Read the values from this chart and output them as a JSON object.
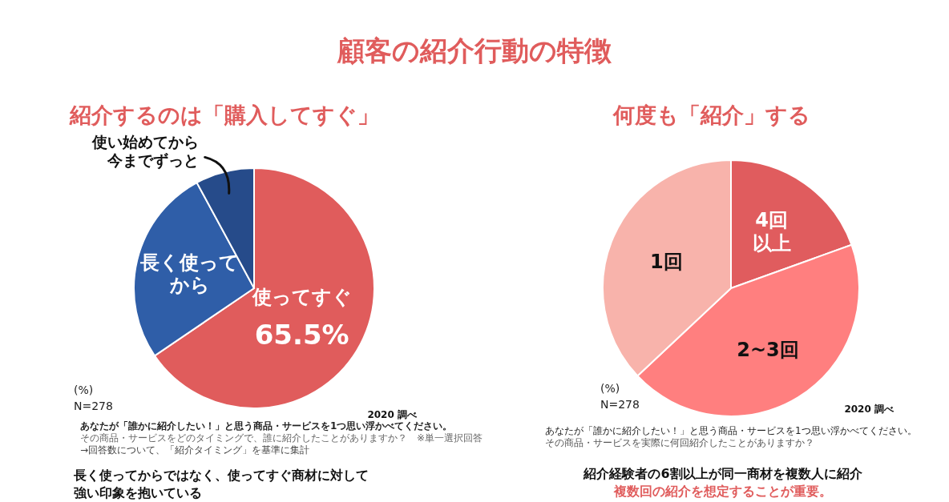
{
  "chart_data": [
    {
      "type": "pie",
      "title": "紹介するのは「購入してすぐ」",
      "categories": [
        "使ってすぐ",
        "長く使ってから",
        "使い始めてから今までずっと"
      ],
      "values": [
        65.5,
        26.6,
        7.9
      ],
      "value_labels": [
        "65.5%",
        null,
        null
      ],
      "colors": [
        "#e05c5c",
        "#2f5ea8",
        "#264b8a"
      ],
      "annotations": [
        "顧客の紹介行動の特徴",
        "(%)",
        "N=278",
        "2020 調べ",
        "あなたが「誰かに紹介したい！」と思う商品・サービスを1つ思い浮かべてください。",
        "その商品・サービスをどのタイミングで、誰に紹介したことがありますか？　※単一選択回答",
        "→回答数について、「紹介タイミング」を基準に集計",
        "長く使ってからではなく、使ってすぐ商材に対して",
        "強い印象を抱いている"
      ]
    },
    {
      "type": "pie",
      "title": "何度も「紹介」する",
      "categories": [
        "4回以上",
        "2~3回",
        "1回"
      ],
      "values": [
        19.5,
        43.5,
        37.0
      ],
      "colors": [
        "#e05c5e",
        "#ff7f7f",
        "#f8b3ab"
      ],
      "annotations": [
        "(%)",
        "N=278",
        "2020 調べ",
        "あなたが「誰かに紹介したい！」と思う商品・サービスを1つ思い浮かべてください。",
        "その商品・サービスを実際に何回紹介したことがありますか？",
        "紹介経験者の6割以上が同一商材を複数人に紹介",
        "複数回の紹介を想定することが重要。"
      ]
    }
  ]
}
